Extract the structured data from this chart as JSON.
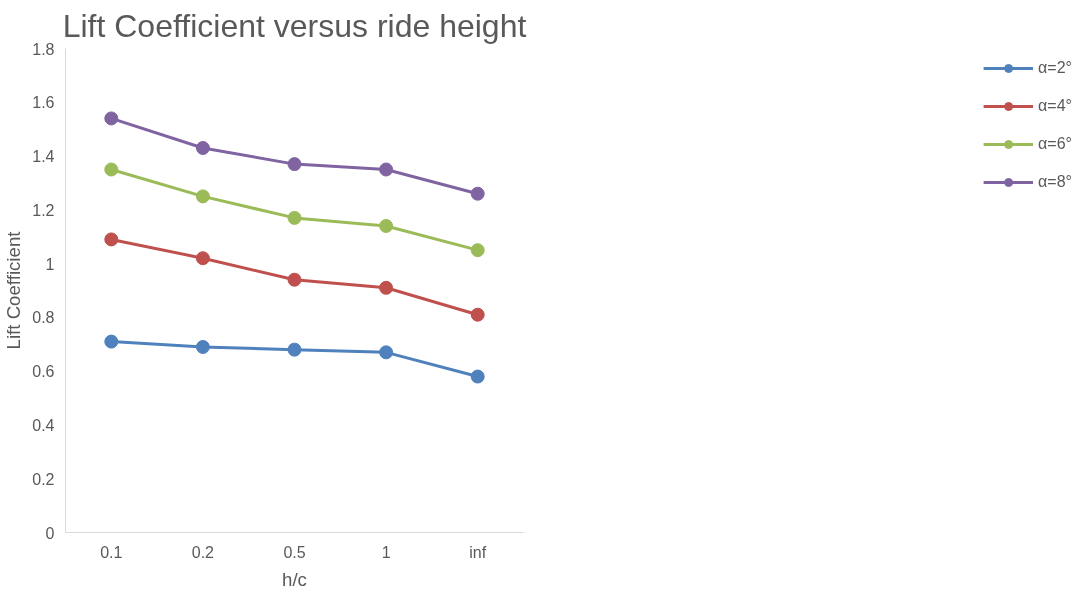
{
  "chart_data": {
    "type": "line",
    "title": "Lift Coefficient versus ride height",
    "xlabel": "h/c",
    "ylabel": "Lift Coefficient",
    "categories": [
      "0.1",
      "0.2",
      "0.5",
      "1",
      "inf"
    ],
    "series": [
      {
        "name": "α=2°",
        "color": "#4f81bd",
        "values": [
          0.71,
          0.69,
          0.68,
          0.67,
          0.58
        ]
      },
      {
        "name": "α=4°",
        "color": "#c0504d",
        "values": [
          1.09,
          1.02,
          0.94,
          0.91,
          0.81
        ]
      },
      {
        "name": "α=6°",
        "color": "#9bbb59",
        "values": [
          1.35,
          1.25,
          1.17,
          1.14,
          1.05
        ]
      },
      {
        "name": "α=8°",
        "color": "#8064a2",
        "values": [
          1.54,
          1.43,
          1.37,
          1.35,
          1.26
        ]
      }
    ],
    "ylim": [
      0,
      1.8
    ],
    "yticks": [
      0,
      0.2,
      0.4,
      0.6,
      0.8,
      1,
      1.2,
      1.4,
      1.6,
      1.8
    ],
    "grid": false,
    "legend": "right",
    "marker": "circle",
    "line_style": "solid"
  }
}
